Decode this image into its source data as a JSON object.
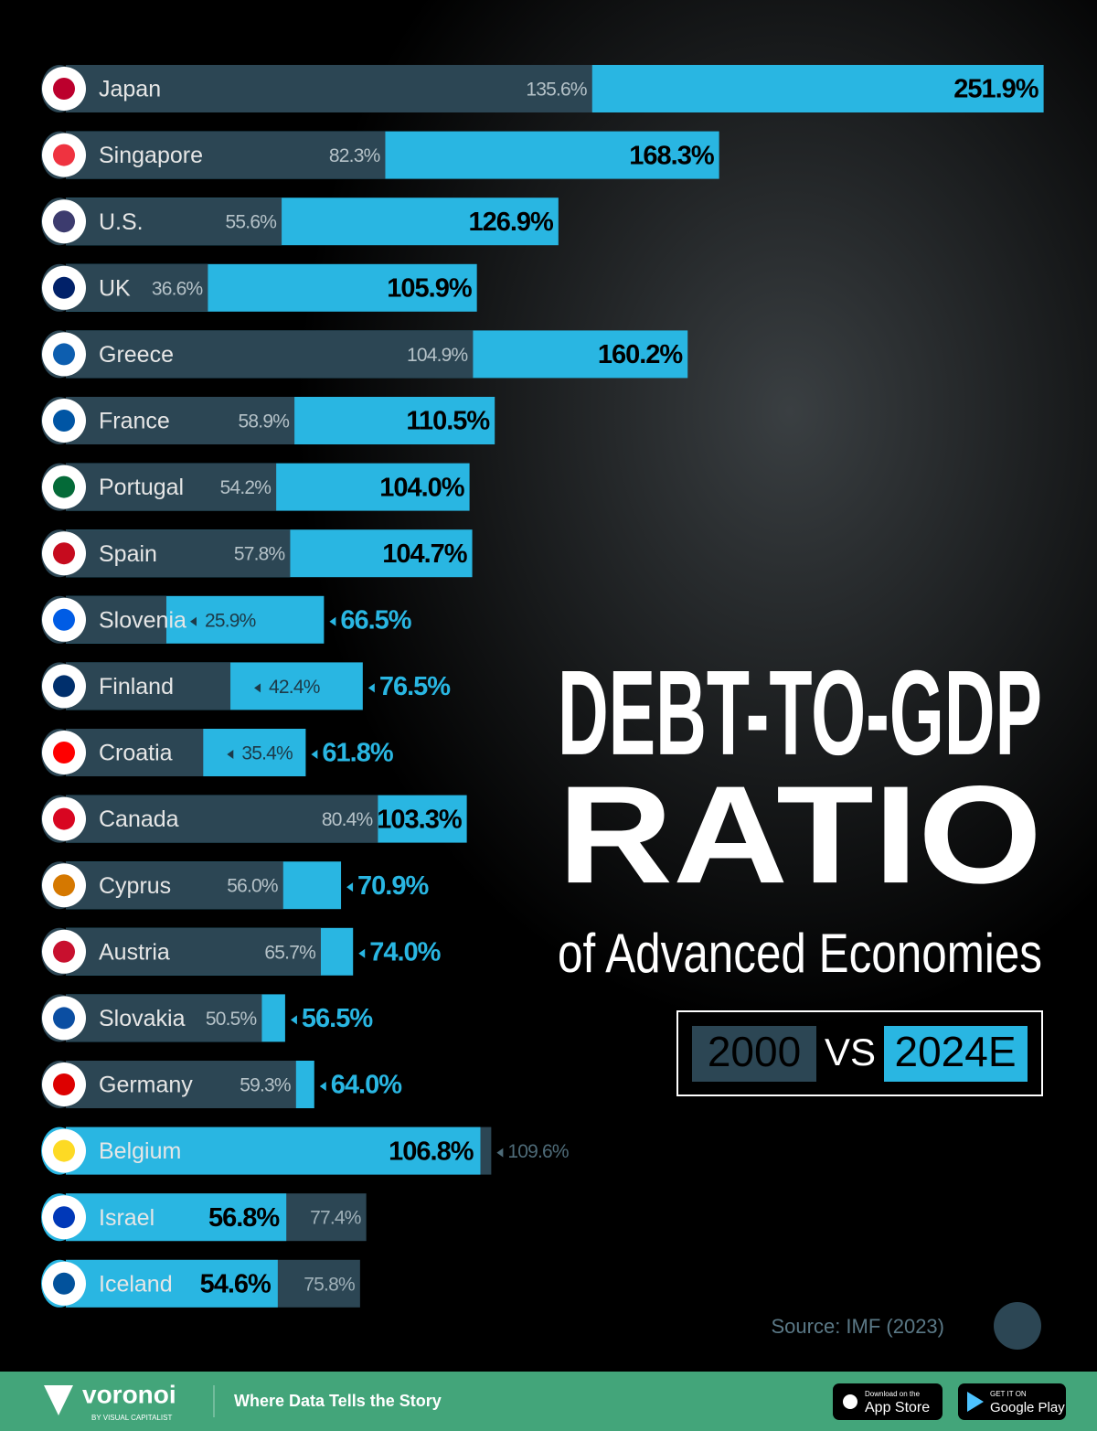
{
  "chart_data": {
    "type": "bar",
    "orientation": "horizontal",
    "title": [
      "DEBT-TO-GDP",
      "RATIO"
    ],
    "subtitle": "of Advanced Economies",
    "categories": [
      "Japan",
      "Singapore",
      "U.S.",
      "UK",
      "Greece",
      "France",
      "Portugal",
      "Spain",
      "Slovenia",
      "Finland",
      "Croatia",
      "Canada",
      "Cyprus",
      "Austria",
      "Slovakia",
      "Germany",
      "Belgium",
      "Israel",
      "Iceland"
    ],
    "series": [
      {
        "name": "2000",
        "color": "#2c4654",
        "values": [
          135.6,
          82.3,
          55.6,
          36.6,
          104.9,
          58.9,
          54.2,
          57.8,
          25.9,
          42.4,
          35.4,
          80.4,
          56.0,
          65.7,
          50.5,
          59.3,
          109.6,
          77.4,
          75.8
        ],
        "value_labels": [
          "135.6%",
          "82.3%",
          "55.6%",
          "36.6%",
          "104.9%",
          "58.9%",
          "54.2%",
          "57.8%",
          "25.9%",
          "42.4%",
          "35.4%",
          "80.4%",
          "56.0%",
          "65.7%",
          "50.5%",
          "59.3%",
          "109.6%",
          "77.4%",
          "75.8%"
        ]
      },
      {
        "name": "2024E",
        "color": "#29b6e2",
        "values": [
          251.9,
          168.3,
          126.9,
          105.9,
          160.2,
          110.5,
          104.0,
          104.7,
          66.5,
          76.5,
          61.8,
          103.3,
          70.9,
          74.0,
          56.5,
          64.0,
          106.8,
          56.8,
          54.6
        ],
        "value_labels": [
          "251.9%",
          "168.3%",
          "126.9%",
          "105.9%",
          "160.2%",
          "110.5%",
          "104.0%",
          "104.7%",
          "66.5%",
          "76.5%",
          "61.8%",
          "103.3%",
          "70.9%",
          "74.0%",
          "56.5%",
          "64.0%",
          "106.8%",
          "56.8%",
          "54.6%"
        ]
      }
    ],
    "xlim": [
      0,
      260
    ],
    "legend_separator": "VS",
    "source": "Source: IMF (2023)"
  },
  "footer": {
    "brand": "voronoi",
    "brand_sub": "BY VISUAL CAPITALIST",
    "tagline": "Where Data Tells the Story",
    "app_store_top": "Download on the",
    "app_store": "App Store",
    "google_play_top": "GET IT ON",
    "google_play": "Google Play"
  }
}
